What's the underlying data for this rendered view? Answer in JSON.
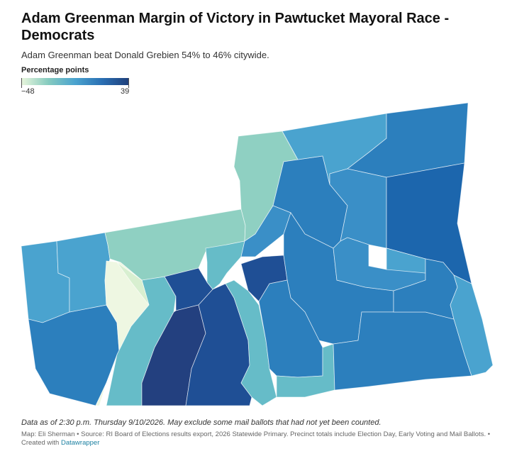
{
  "title": "Adam Greenman Margin of Victory in Pawtucket Mayoral Race - Democrats",
  "subtitle": "Adam Greenman beat Donald Grebien 54% to 46% citywide.",
  "legend": {
    "label": "Percentage points",
    "min": "−48",
    "max": "39",
    "colors": [
      "#e9f6dc",
      "#86cbbf",
      "#4aa3cf",
      "#2a6fb3",
      "#1f3f7a"
    ]
  },
  "note": "Data as of 2:30 p.m. Thursday 9/10/2026. May exclude some mail ballots that had not yet been counted.",
  "source_prefix": "Map: Eli Sherman • Source: RI Board of Elections results export, 2026 Statewide Primary. Precinct totals include Election Day, Early Voting and Mail Ballots. • Created with ",
  "source_link": "Datawrapper",
  "precinct_colors": {
    "lightest": "#eef7e2",
    "light": "#d8efd0",
    "mint": "#8fd0c2",
    "teal": "#66bcc8",
    "sky": "#4aa3cf",
    "mid": "#3a8fc7",
    "blue": "#2c7fbd",
    "strong": "#1c66ad",
    "dark": "#1f4f95",
    "darkest": "#23407f"
  }
}
